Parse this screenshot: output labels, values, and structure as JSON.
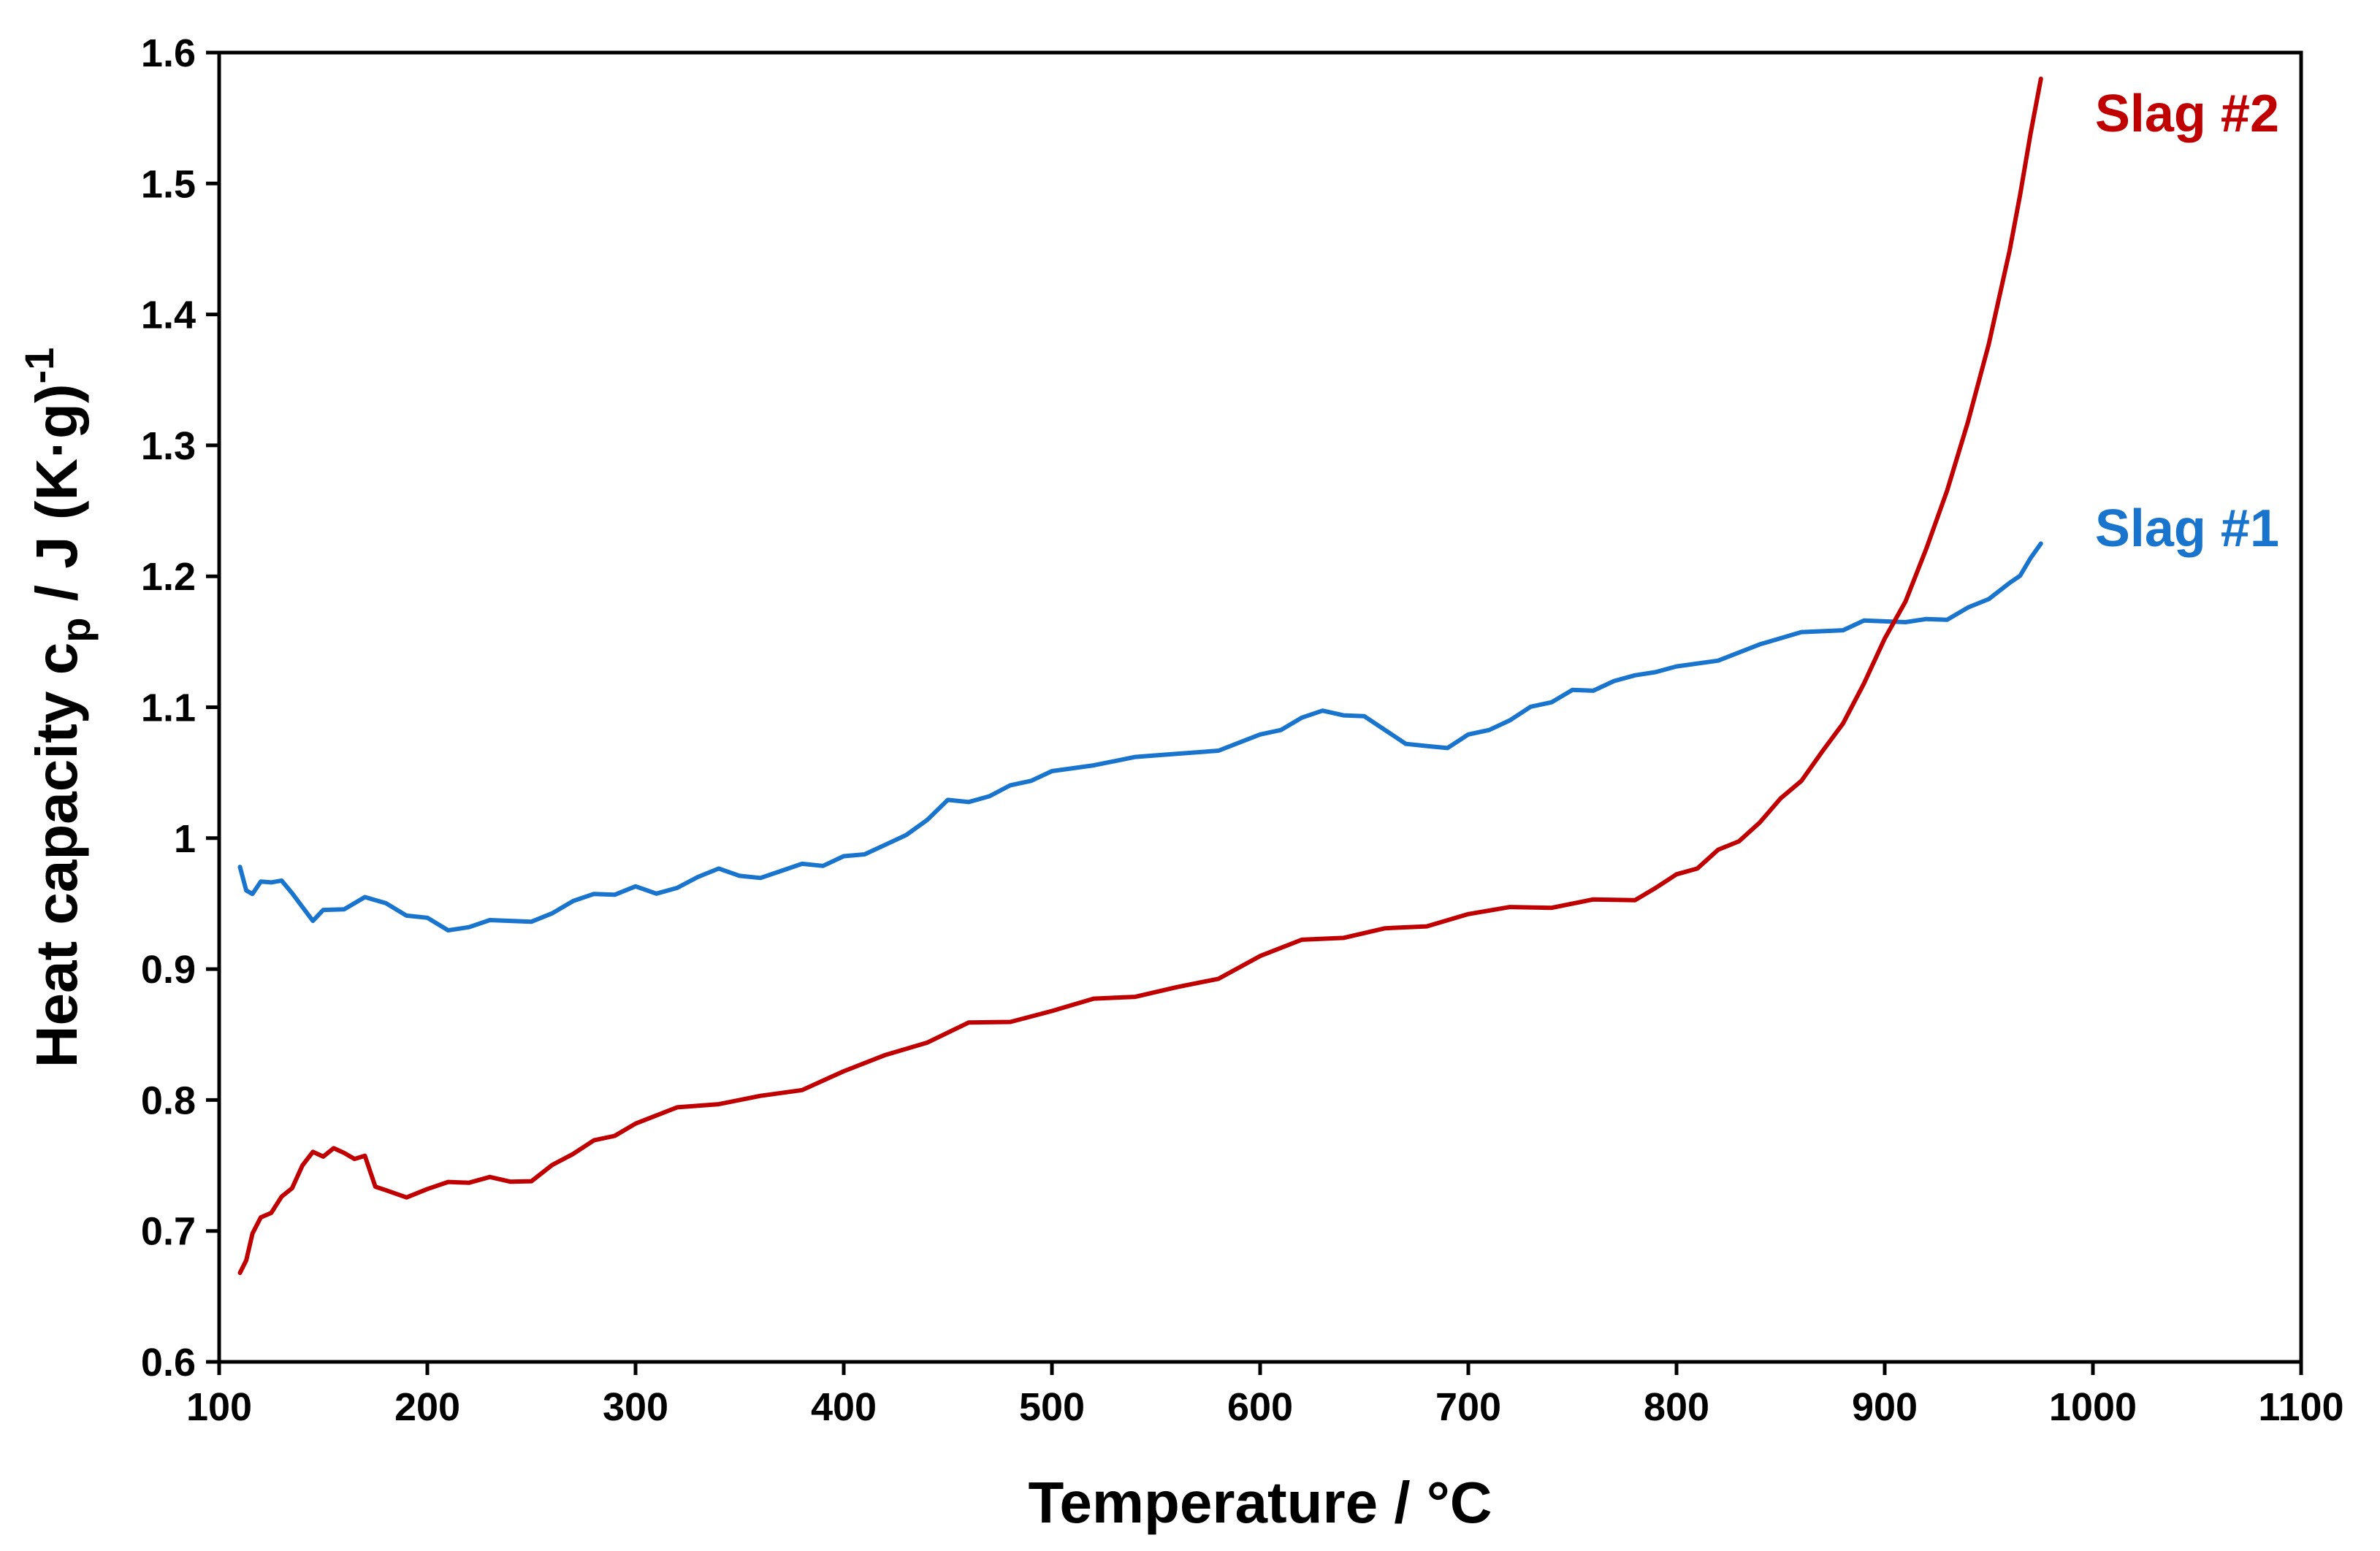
{
  "chart_data": {
    "type": "line",
    "title": "",
    "xlabel": "Temperature / °C",
    "ylabel": {
      "main": "Heat capacity c",
      "subscript": "p",
      "unit": " / J (K·g)",
      "superscript": "-1"
    },
    "xlim": [
      100,
      1100
    ],
    "ylim": [
      0.6,
      1.6
    ],
    "xticks": [
      100,
      200,
      300,
      400,
      500,
      600,
      700,
      800,
      900,
      1000,
      1100
    ],
    "xtick_labels": [
      "100",
      "200",
      "300",
      "400",
      "500",
      "600",
      "700",
      "800",
      "900",
      "1000",
      "1100"
    ],
    "yticks": [
      0.6,
      0.7,
      0.8,
      0.9,
      1.0,
      1.1,
      1.2,
      1.3,
      1.4,
      1.5,
      1.6
    ],
    "ytick_labels": [
      "0.6",
      "0.7",
      "0.8",
      "0.9",
      "1",
      "1.1",
      "1.2",
      "1.3",
      "1.4",
      "1.5",
      "1.6"
    ],
    "grid": false,
    "series": [
      {
        "name": "Slag #1",
        "color": "#1874CD",
        "x": [
          110,
          113,
          116,
          120,
          125,
          130,
          135,
          140,
          145,
          150,
          160,
          170,
          180,
          190,
          200,
          210,
          220,
          230,
          240,
          250,
          260,
          270,
          280,
          290,
          300,
          310,
          320,
          330,
          340,
          350,
          360,
          370,
          380,
          390,
          400,
          410,
          420,
          430,
          440,
          450,
          460,
          470,
          480,
          490,
          500,
          520,
          540,
          560,
          580,
          600,
          610,
          620,
          630,
          640,
          650,
          660,
          670,
          680,
          690,
          700,
          710,
          720,
          730,
          740,
          750,
          760,
          770,
          780,
          790,
          800,
          820,
          840,
          860,
          880,
          890,
          900,
          910,
          920,
          930,
          940,
          950,
          960,
          965,
          970,
          975
        ],
        "values": [
          0.978,
          0.96,
          0.955,
          0.968,
          0.965,
          0.97,
          0.958,
          0.945,
          0.938,
          0.944,
          0.948,
          0.955,
          0.948,
          0.942,
          0.938,
          0.932,
          0.932,
          0.935,
          0.938,
          0.935,
          0.945,
          0.952,
          0.955,
          0.958,
          0.962,
          0.96,
          0.962,
          0.968,
          0.978,
          0.97,
          0.972,
          0.975,
          0.978,
          0.98,
          0.985,
          0.99,
          0.995,
          1.0,
          1.015,
          1.028,
          1.03,
          1.032,
          1.038,
          1.045,
          1.05,
          1.058,
          1.062,
          1.062,
          1.068,
          1.078,
          1.085,
          1.092,
          1.095,
          1.095,
          1.092,
          1.085,
          1.072,
          1.068,
          1.07,
          1.078,
          1.085,
          1.09,
          1.098,
          1.105,
          1.112,
          1.115,
          1.12,
          1.122,
          1.128,
          1.13,
          1.138,
          1.148,
          1.155,
          1.16,
          1.165,
          1.168,
          1.165,
          1.165,
          1.168,
          1.175,
          1.185,
          1.195,
          1.198,
          1.215,
          1.225
        ]
      },
      {
        "name": "Slag #2",
        "color": "#C00000",
        "x": [
          110,
          113,
          116,
          120,
          125,
          130,
          135,
          140,
          145,
          150,
          155,
          160,
          165,
          170,
          175,
          180,
          190,
          200,
          210,
          220,
          230,
          240,
          250,
          260,
          270,
          280,
          290,
          300,
          320,
          340,
          360,
          380,
          400,
          420,
          440,
          460,
          480,
          500,
          520,
          540,
          560,
          580,
          600,
          620,
          640,
          660,
          680,
          700,
          720,
          740,
          760,
          780,
          790,
          800,
          810,
          820,
          830,
          840,
          850,
          860,
          870,
          880,
          890,
          900,
          910,
          920,
          930,
          940,
          950,
          960,
          965,
          970,
          975
        ],
        "values": [
          0.668,
          0.68,
          0.698,
          0.708,
          0.715,
          0.725,
          0.735,
          0.75,
          0.758,
          0.758,
          0.762,
          0.762,
          0.755,
          0.755,
          0.735,
          0.73,
          0.728,
          0.732,
          0.735,
          0.738,
          0.74,
          0.74,
          0.738,
          0.748,
          0.76,
          0.768,
          0.775,
          0.782,
          0.792,
          0.798,
          0.802,
          0.81,
          0.822,
          0.832,
          0.845,
          0.858,
          0.862,
          0.868,
          0.875,
          0.88,
          0.885,
          0.895,
          0.91,
          0.92,
          0.925,
          0.93,
          0.935,
          0.942,
          0.945,
          0.948,
          0.952,
          0.955,
          0.962,
          0.97,
          0.978,
          0.99,
          1.0,
          1.012,
          1.028,
          1.045,
          1.065,
          1.09,
          1.118,
          1.15,
          1.182,
          1.22,
          1.268,
          1.318,
          1.375,
          1.45,
          1.49,
          1.54,
          1.58
        ]
      }
    ]
  }
}
